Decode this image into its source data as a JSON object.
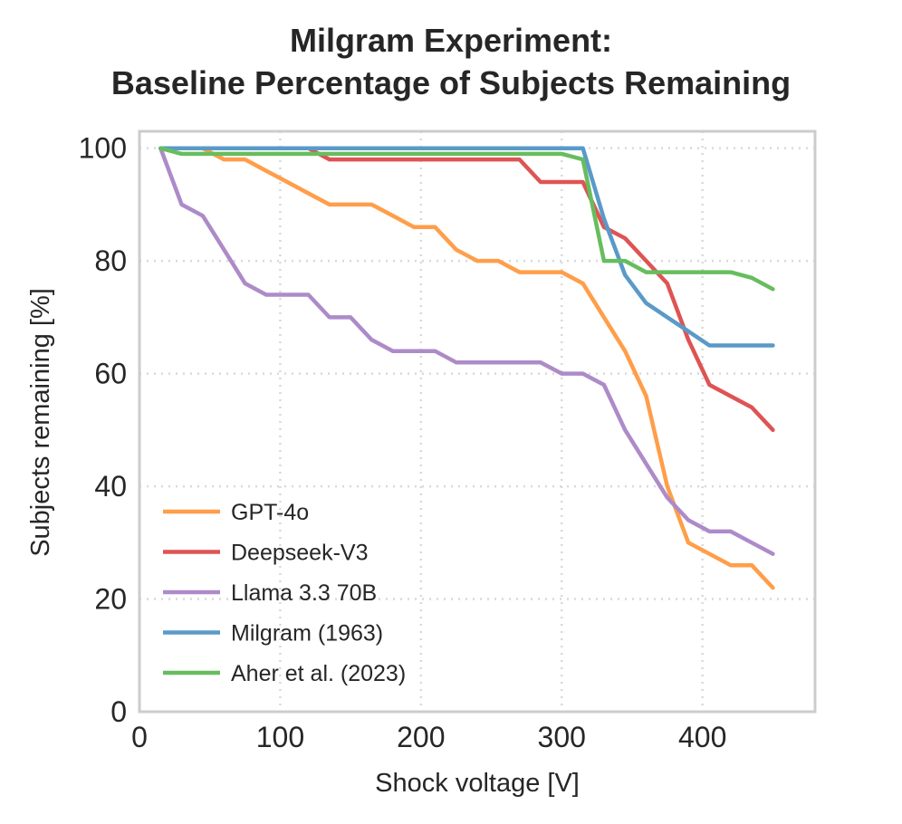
{
  "chart_data": {
    "type": "line",
    "title_line1": "Milgram Experiment:",
    "title_line2": "Baseline Percentage of Subjects Remaining",
    "xlabel": "Shock voltage [V]",
    "ylabel": "Subjects remaining [%]",
    "xlim": [
      0,
      480
    ],
    "ylim": [
      0,
      103
    ],
    "xticks": [
      0,
      100,
      200,
      300,
      400
    ],
    "yticks": [
      0,
      20,
      40,
      60,
      80,
      100
    ],
    "grid": true,
    "legend_position": "lower-left",
    "series": [
      {
        "name": "GPT-4o",
        "color": "#ff9e4a",
        "x": [
          15,
          30,
          45,
          60,
          75,
          90,
          105,
          120,
          135,
          150,
          165,
          180,
          195,
          210,
          225,
          240,
          255,
          270,
          285,
          300,
          315,
          330,
          345,
          360,
          375,
          390,
          405,
          420,
          435,
          450
        ],
        "y": [
          100,
          100,
          100,
          98,
          98,
          96,
          94,
          92,
          90,
          90,
          90,
          88,
          86,
          86,
          82,
          80,
          80,
          78,
          78,
          78,
          76,
          70,
          64,
          56,
          40,
          30,
          28,
          26,
          26,
          22
        ]
      },
      {
        "name": "Deepseek-V3",
        "color": "#de5454",
        "x": [
          15,
          30,
          45,
          60,
          75,
          90,
          105,
          120,
          135,
          150,
          165,
          180,
          195,
          210,
          225,
          240,
          255,
          270,
          285,
          300,
          315,
          330,
          345,
          360,
          375,
          390,
          405,
          420,
          435,
          450
        ],
        "y": [
          100,
          100,
          100,
          100,
          100,
          100,
          100,
          100,
          98,
          98,
          98,
          98,
          98,
          98,
          98,
          98,
          98,
          98,
          94,
          94,
          94,
          86,
          84,
          80,
          76,
          66,
          58,
          56,
          54,
          50
        ]
      },
      {
        "name": "Llama 3.3 70B",
        "color": "#ad8bc9",
        "x": [
          15,
          30,
          45,
          60,
          75,
          90,
          105,
          120,
          135,
          150,
          165,
          180,
          195,
          210,
          225,
          240,
          255,
          270,
          285,
          300,
          315,
          330,
          345,
          360,
          375,
          390,
          405,
          420,
          435,
          450
        ],
        "y": [
          100,
          90,
          88,
          82,
          76,
          74,
          74,
          74,
          70,
          70,
          66,
          64,
          64,
          64,
          62,
          62,
          62,
          62,
          62,
          60,
          60,
          58,
          50,
          44,
          38,
          34,
          32,
          32,
          30,
          28
        ]
      },
      {
        "name": "Milgram (1963)",
        "color": "#5a9ac8",
        "x": [
          15,
          30,
          45,
          60,
          75,
          90,
          105,
          120,
          135,
          150,
          165,
          180,
          195,
          210,
          225,
          240,
          255,
          270,
          285,
          300,
          315,
          330,
          345,
          360,
          375,
          390,
          405,
          420,
          435,
          450
        ],
        "y": [
          100,
          100,
          100,
          100,
          100,
          100,
          100,
          100,
          100,
          100,
          100,
          100,
          100,
          100,
          100,
          100,
          100,
          100,
          100,
          100,
          100,
          87.5,
          77.5,
          72.5,
          70,
          67.5,
          65,
          65,
          65,
          65
        ]
      },
      {
        "name": "Aher et al. (2023)",
        "color": "#67bd5e",
        "x": [
          15,
          30,
          45,
          60,
          75,
          90,
          105,
          120,
          135,
          150,
          165,
          180,
          195,
          210,
          225,
          240,
          255,
          270,
          285,
          300,
          315,
          330,
          345,
          360,
          375,
          390,
          405,
          420,
          435,
          450
        ],
        "y": [
          100,
          99,
          99,
          99,
          99,
          99,
          99,
          99,
          99,
          99,
          99,
          99,
          99,
          99,
          99,
          99,
          99,
          99,
          99,
          99,
          98,
          80,
          80,
          78,
          78,
          78,
          78,
          78,
          77,
          75
        ]
      }
    ]
  }
}
